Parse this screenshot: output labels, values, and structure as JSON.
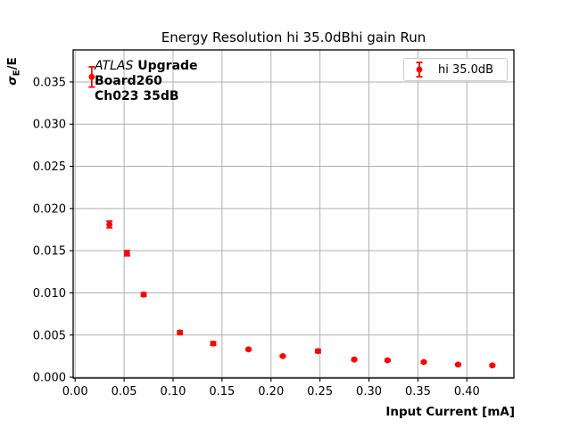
{
  "chart_data": {
    "type": "scatter",
    "title": "Energy Resolution hi 35.0dBhi gain Run",
    "xlabel": "Input Current [mA]",
    "ylabel": "σE/E",
    "ylabel_parts": {
      "sigma": "σ",
      "subscript": "E",
      "rest": "/E"
    },
    "series": [
      {
        "name": "hi 35.0dB",
        "color": "#ff0000",
        "marker": "circle",
        "x": [
          0.017,
          0.035,
          0.053,
          0.07,
          0.107,
          0.141,
          0.177,
          0.212,
          0.248,
          0.285,
          0.319,
          0.356,
          0.391,
          0.426
        ],
        "y": [
          0.0356,
          0.0181,
          0.0147,
          0.0098,
          0.0053,
          0.004,
          0.0033,
          0.0025,
          0.0031,
          0.0021,
          0.002,
          0.0018,
          0.0015,
          0.0014
        ],
        "yerr": [
          0.0012,
          0.0004,
          0.0003,
          0.0002,
          0.0002,
          0.0002,
          0.0001,
          0.0001,
          0.0002,
          0.0001,
          0.0001,
          0.0001,
          0.0001,
          0.0001
        ]
      }
    ],
    "xlim": [
      -0.002,
      0.448
    ],
    "ylim": [
      -0.0001,
      0.0388
    ],
    "xticks": [
      0.0,
      0.05,
      0.1,
      0.15,
      0.2,
      0.25,
      0.3,
      0.35,
      0.4
    ],
    "xtick_labels": [
      "0.00",
      "0.05",
      "0.10",
      "0.15",
      "0.20",
      "0.25",
      "0.30",
      "0.35",
      "0.40"
    ],
    "yticks": [
      0.0,
      0.005,
      0.01,
      0.015,
      0.02,
      0.025,
      0.03,
      0.035
    ],
    "ytick_labels": [
      "0.000",
      "0.005",
      "0.010",
      "0.015",
      "0.020",
      "0.025",
      "0.030",
      "0.035"
    ],
    "grid": true,
    "grid_color": "#b0b0b0",
    "spine_color": "#000000",
    "tick_label_color": "#000000",
    "legend": {
      "position": "upper-right",
      "entries": [
        "hi 35.0dB"
      ]
    },
    "annotation": {
      "line1_italic": "ATLAS",
      "line1_bold": " Upgrade",
      "line2": "Board260",
      "line3": "Ch023 35dB"
    }
  }
}
